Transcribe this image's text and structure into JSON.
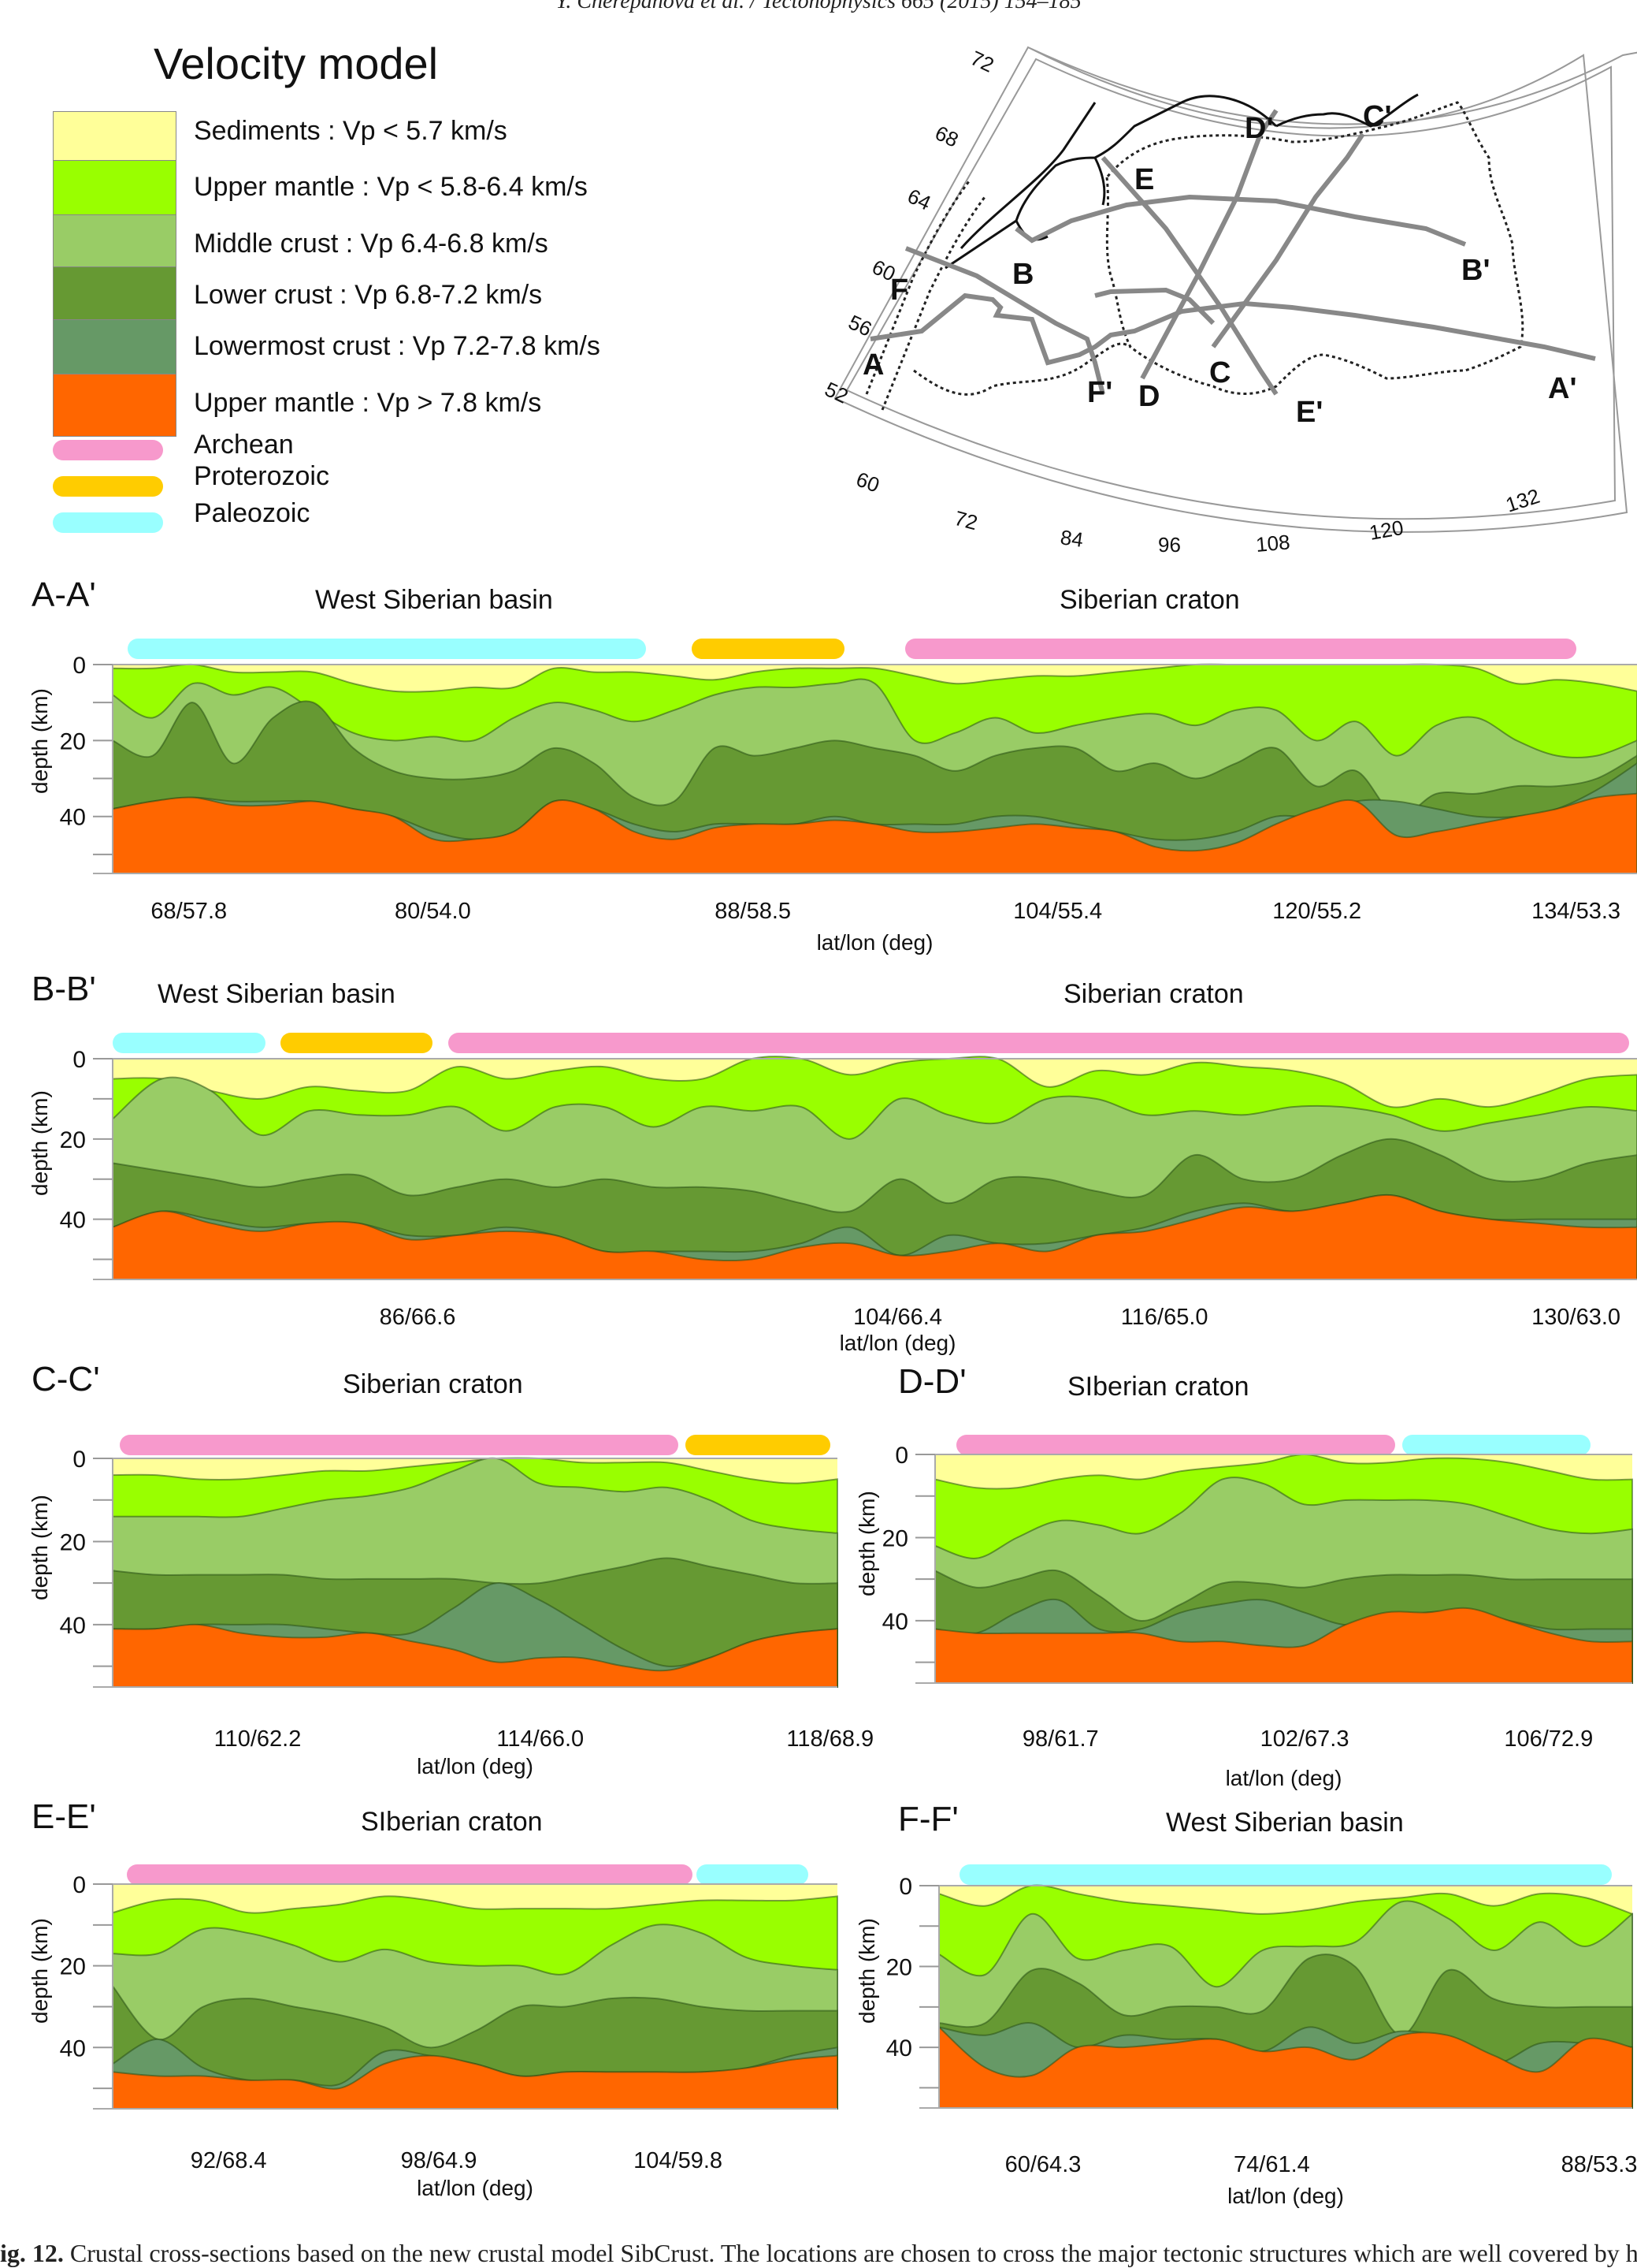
{
  "header": {
    "running_head": "Y. Cherepanova et al. / Tectonophysics 665 (2015) 154–185"
  },
  "legend": {
    "title": "Velocity model",
    "layers": [
      {
        "key": "sed",
        "label": "Sediments : Vp < 5.7 km/s",
        "color": "#FFFF99"
      },
      {
        "key": "upper",
        "label": "Upper mantle : Vp < 5.8-6.4 km/s",
        "color": "#99FF00"
      },
      {
        "key": "middle",
        "label": "Middle crust : Vp 6.4-6.8 km/s",
        "color": "#99CC66"
      },
      {
        "key": "lower",
        "label": "Lower crust : Vp 6.8-7.2 km/s",
        "color": "#669933"
      },
      {
        "key": "lowermost",
        "label": "Lowermost crust : Vp 7.2-7.8 km/s",
        "color": "#669966"
      },
      {
        "key": "mantle",
        "label": "Upper mantle : Vp > 7.8 km/s",
        "color": "#FF6600"
      }
    ],
    "ages": [
      {
        "key": "archean",
        "label": "Archean",
        "color": "#F799CC"
      },
      {
        "key": "proterozoic",
        "label": "Proterozoic",
        "color": "#FFCC00"
      },
      {
        "key": "paleozoic",
        "label": "Paleozoic",
        "color": "#99FFFF"
      }
    ]
  },
  "map": {
    "lat_ticks": [
      "72",
      "68",
      "64",
      "60",
      "56",
      "52"
    ],
    "lon_ticks": [
      "60",
      "72",
      "84",
      "96",
      "108",
      "120",
      "132"
    ],
    "profile_labels": [
      "A",
      "A'",
      "B",
      "B'",
      "C",
      "C'",
      "D",
      "D'",
      "E",
      "E'",
      "F",
      "F'"
    ]
  },
  "chart_data": [
    {
      "type": "area",
      "id": "AA",
      "title": "A-A'",
      "regions": [
        {
          "label": "West Siberian basin"
        },
        {
          "label": "Siberian craton"
        }
      ],
      "age_bars": [
        {
          "age": "paleozoic",
          "from": 0.01,
          "to": 0.35
        },
        {
          "age": "proterozoic",
          "from": 0.38,
          "to": 0.48
        },
        {
          "age": "archean",
          "from": 0.52,
          "to": 0.96
        }
      ],
      "xlabel": "lat/lon (deg)",
      "ylabel": "depth (km)",
      "ylim": [
        0,
        55
      ],
      "yticks": [
        0,
        10,
        20,
        30,
        40,
        50
      ],
      "ytick_labels": [
        "0",
        "20",
        "40"
      ],
      "xtick_labels": [
        {
          "label": "68/57.8",
          "at": 0.05
        },
        {
          "label": "80/54.0",
          "at": 0.21
        },
        {
          "label": "88/58.5",
          "at": 0.42
        },
        {
          "label": "104/55.4",
          "at": 0.62
        },
        {
          "label": "120/55.2",
          "at": 0.79
        },
        {
          "label": "134/53.3",
          "at": 0.96
        }
      ],
      "boundaries": {
        "sed_base": [
          1,
          1,
          0,
          2,
          2,
          2,
          5,
          7,
          7,
          6,
          6,
          1,
          2,
          2,
          3,
          4,
          2,
          1,
          1,
          1,
          3,
          5,
          4,
          3,
          3,
          2,
          1,
          0,
          0,
          0,
          0,
          0,
          0,
          0,
          1,
          5,
          4,
          5,
          7
        ],
        "upper_base": [
          8,
          14,
          5,
          8,
          6,
          12,
          18,
          20,
          19,
          20,
          14,
          10,
          12,
          15,
          12,
          8,
          6,
          6,
          5,
          5,
          20,
          18,
          14,
          18,
          16,
          14,
          13,
          16,
          12,
          12,
          20,
          15,
          24,
          16,
          14,
          20,
          24,
          24,
          20
        ],
        "middle_base": [
          20,
          24,
          10,
          26,
          14,
          10,
          22,
          28,
          30,
          30,
          28,
          22,
          26,
          35,
          36,
          22,
          24,
          22,
          20,
          22,
          24,
          28,
          24,
          22,
          22,
          28,
          26,
          30,
          26,
          22,
          32,
          28,
          40,
          34,
          34,
          32,
          32,
          30,
          24
        ],
        "lower_base": [
          38,
          36,
          35,
          36,
          36,
          36,
          38,
          40,
          44,
          46,
          44,
          36,
          38,
          42,
          44,
          42,
          42,
          42,
          40,
          42,
          42,
          42,
          40,
          40,
          42,
          44,
          46,
          46,
          44,
          40,
          40,
          36,
          36,
          38,
          40,
          40,
          38,
          33,
          26
        ],
        "lowermost_base": [
          38,
          36,
          35,
          37,
          37,
          36,
          38,
          40,
          46,
          46,
          44,
          36,
          38,
          44,
          46,
          43,
          42,
          42,
          41,
          42,
          44,
          44,
          43,
          42,
          43,
          44,
          48,
          49,
          47,
          42,
          38,
          36,
          45,
          44,
          42,
          40,
          38,
          35,
          34
        ]
      }
    },
    {
      "type": "area",
      "id": "BB",
      "title": "B-B'",
      "regions": [
        {
          "label": "West Siberian basin"
        },
        {
          "label": "Siberian craton"
        }
      ],
      "age_bars": [
        {
          "age": "paleozoic",
          "from": 0.0,
          "to": 0.1
        },
        {
          "age": "proterozoic",
          "from": 0.11,
          "to": 0.21
        },
        {
          "age": "archean",
          "from": 0.22,
          "to": 0.995
        }
      ],
      "xlabel": "lat/lon (deg)",
      "ylabel": "depth (km)",
      "ylim": [
        0,
        55
      ],
      "yticks": [
        0,
        10,
        20,
        30,
        40,
        50
      ],
      "ytick_labels": [
        "0",
        "20",
        "40"
      ],
      "xtick_labels": [
        {
          "label": "86/66.6",
          "at": 0.2
        },
        {
          "label": "104/66.4",
          "at": 0.515
        },
        {
          "label": "116/65.0",
          "at": 0.69
        },
        {
          "label": "130/63.0",
          "at": 0.96
        }
      ],
      "boundaries": {
        "sed_base": [
          5,
          5,
          8,
          10,
          7,
          8,
          8,
          2,
          5,
          3,
          2,
          5,
          5,
          0,
          0,
          4,
          1,
          0,
          0,
          7,
          3,
          4,
          1,
          2,
          3,
          6,
          12,
          10,
          12,
          9,
          5,
          4
        ],
        "upper_base": [
          15,
          5,
          8,
          19,
          13,
          14,
          14,
          12,
          18,
          12,
          12,
          17,
          12,
          13,
          12,
          20,
          10,
          14,
          16,
          10,
          10,
          14,
          13,
          14,
          12,
          12,
          14,
          18,
          16,
          14,
          12,
          13
        ],
        "middle_base": [
          26,
          28,
          30,
          32,
          30,
          29,
          34,
          32,
          30,
          32,
          30,
          32,
          32,
          33,
          36,
          38,
          30,
          36,
          30,
          30,
          33,
          34,
          24,
          30,
          30,
          24,
          20,
          24,
          30,
          30,
          26,
          24
        ],
        "lower_base": [
          42,
          38,
          40,
          42,
          41,
          41,
          44,
          44,
          42,
          44,
          48,
          48,
          48,
          48,
          46,
          42,
          49,
          44,
          46,
          46,
          44,
          42,
          38,
          36,
          38,
          36,
          34,
          38,
          40,
          40,
          40,
          40
        ],
        "lowermost_base": [
          42,
          38,
          41,
          43,
          41,
          41,
          45,
          44,
          43,
          44,
          48,
          48,
          50,
          50,
          47,
          46,
          49,
          48,
          46,
          48,
          44,
          43,
          40,
          37,
          38,
          36,
          34,
          38,
          40,
          41,
          42,
          42
        ]
      }
    },
    {
      "type": "area",
      "id": "CC",
      "title": "C-C'",
      "regions": [
        {
          "label": "Siberian craton"
        }
      ],
      "age_bars": [
        {
          "age": "archean",
          "from": 0.01,
          "to": 0.78
        },
        {
          "age": "proterozoic",
          "from": 0.79,
          "to": 0.99
        }
      ],
      "xlabel": "lat/lon (deg)",
      "ylabel": "depth (km)",
      "ylim": [
        0,
        55
      ],
      "yticks": [
        0,
        10,
        20,
        30,
        40,
        50
      ],
      "ytick_labels": [
        "0",
        "20",
        "40"
      ],
      "xtick_labels": [
        {
          "label": "110/62.2",
          "at": 0.2
        },
        {
          "label": "114/66.0",
          "at": 0.59
        },
        {
          "label": "118/68.9",
          "at": 0.99
        }
      ],
      "boundaries": {
        "sed_base": [
          4,
          4,
          5,
          5,
          4,
          3,
          3,
          2,
          1,
          0,
          0,
          1,
          1,
          1,
          3,
          5,
          6,
          5
        ],
        "upper_base": [
          14,
          14,
          14,
          14,
          12,
          10,
          9,
          7,
          3,
          0,
          6,
          7,
          8,
          7,
          10,
          15,
          17,
          18
        ],
        "middle_base": [
          27,
          28,
          28,
          28,
          28,
          29,
          29,
          29,
          29,
          30,
          30,
          28,
          26,
          24,
          26,
          28,
          30,
          30
        ],
        "lower_base": [
          41,
          41,
          40,
          40,
          40,
          41,
          42,
          42,
          36,
          30,
          34,
          40,
          46,
          50,
          48,
          44,
          42,
          41
        ],
        "lowermost_base": [
          41,
          41,
          40,
          42,
          43,
          43,
          42,
          44,
          46,
          49,
          48,
          48,
          50,
          51,
          48,
          44,
          42,
          41
        ]
      }
    },
    {
      "type": "area",
      "id": "DD",
      "title": "D-D'",
      "regions": [
        {
          "label": "SIberian craton"
        }
      ],
      "age_bars": [
        {
          "age": "archean",
          "from": 0.03,
          "to": 0.66
        },
        {
          "age": "paleozoic",
          "from": 0.67,
          "to": 0.94
        }
      ],
      "xlabel": "lat/lon (deg)",
      "ylabel": "depth (km)",
      "ylim": [
        0,
        55
      ],
      "yticks": [
        0,
        10,
        20,
        30,
        40,
        50
      ],
      "ytick_labels": [
        "0",
        "20",
        "40"
      ],
      "xtick_labels": [
        {
          "label": "98/61.7",
          "at": 0.18
        },
        {
          "label": "102/67.3",
          "at": 0.53
        },
        {
          "label": "106/72.9",
          "at": 0.88
        }
      ],
      "boundaries": {
        "sed_base": [
          6,
          8,
          8,
          6,
          5,
          6,
          4,
          3,
          2,
          0,
          2,
          2,
          1,
          1,
          2,
          4,
          6,
          6
        ],
        "upper_base": [
          22,
          25,
          20,
          16,
          17,
          19,
          14,
          6,
          7,
          12,
          11,
          11,
          11,
          12,
          15,
          18,
          19,
          18
        ],
        "middle_base": [
          28,
          32,
          30,
          28,
          34,
          40,
          36,
          31,
          31,
          32,
          30,
          29,
          29,
          29,
          30,
          30,
          30,
          30
        ],
        "lower_base": [
          42,
          43,
          38,
          35,
          42,
          42,
          38,
          36,
          35,
          38,
          41,
          40,
          38,
          38,
          40,
          42,
          42,
          42
        ],
        "lowermost_base": [
          42,
          43,
          43,
          43,
          43,
          43,
          45,
          45,
          46,
          46,
          41,
          38,
          38,
          37,
          40,
          43,
          45,
          45
        ]
      }
    },
    {
      "type": "area",
      "id": "EE",
      "title": "E-E'",
      "regions": [
        {
          "label": "SIberian craton"
        }
      ],
      "age_bars": [
        {
          "age": "archean",
          "from": 0.02,
          "to": 0.8
        },
        {
          "age": "paleozoic",
          "from": 0.805,
          "to": 0.96
        }
      ],
      "xlabel": "lat/lon (deg)",
      "ylabel": "depth (km)",
      "ylim": [
        0,
        55
      ],
      "yticks": [
        0,
        10,
        20,
        30,
        40,
        50
      ],
      "ytick_labels": [
        "0",
        "20",
        "40"
      ],
      "xtick_labels": [
        {
          "label": "92/68.4",
          "at": 0.16
        },
        {
          "label": "98/64.9",
          "at": 0.45
        },
        {
          "label": "104/59.8",
          "at": 0.78
        }
      ],
      "boundaries": {
        "sed_base": [
          7,
          4,
          4,
          7,
          6,
          5,
          3,
          4,
          6,
          6,
          6,
          6,
          5,
          4,
          4,
          4,
          3
        ],
        "upper_base": [
          17,
          17,
          11,
          12,
          15,
          19,
          16,
          19,
          20,
          20,
          22,
          15,
          10,
          12,
          18,
          20,
          21
        ],
        "middle_base": [
          25,
          38,
          30,
          28,
          30,
          32,
          35,
          40,
          36,
          30,
          30,
          28,
          28,
          30,
          31,
          31,
          31
        ],
        "lower_base": [
          44,
          38,
          45,
          48,
          48,
          49,
          41,
          42,
          44,
          47,
          46,
          46,
          46,
          46,
          45,
          42,
          40
        ],
        "lowermost_base": [
          46,
          47,
          47,
          48,
          48,
          50,
          44,
          42,
          44,
          47,
          46,
          46,
          46,
          46,
          45,
          43,
          42
        ]
      }
    },
    {
      "type": "area",
      "id": "FF",
      "title": "F-F'",
      "regions": [
        {
          "label": "West Siberian basin"
        }
      ],
      "age_bars": [
        {
          "age": "paleozoic",
          "from": 0.03,
          "to": 0.97
        }
      ],
      "xlabel": "lat/lon (deg)",
      "ylabel": "depth (km)",
      "ylim": [
        0,
        55
      ],
      "yticks": [
        0,
        10,
        20,
        30,
        40,
        50
      ],
      "ytick_labels": [
        "0",
        "20",
        "40"
      ],
      "xtick_labels": [
        {
          "label": "60/64.3",
          "at": 0.15
        },
        {
          "label": "74/61.4",
          "at": 0.48
        },
        {
          "label": "88/53.3",
          "at": 0.99
        }
      ],
      "boundaries": {
        "sed_base": [
          2,
          5,
          0,
          2,
          4,
          5,
          6,
          7,
          6,
          4,
          3,
          2,
          5,
          2,
          3,
          7
        ],
        "upper_base": [
          17,
          22,
          7,
          18,
          16,
          15,
          25,
          16,
          15,
          14,
          4,
          8,
          16,
          9,
          15,
          7
        ],
        "middle_base": [
          34,
          34,
          21,
          24,
          32,
          30,
          30,
          31,
          18,
          20,
          37,
          21,
          28,
          30,
          30,
          30
        ],
        "lower_base": [
          35,
          37,
          34,
          40,
          37,
          38,
          38,
          41,
          35,
          39,
          36,
          38,
          44,
          39,
          39,
          40
        ],
        "lowermost_base": [
          35,
          45,
          47,
          40,
          40,
          39,
          38,
          41,
          40,
          43,
          37,
          37,
          42,
          46,
          38,
          40
        ]
      }
    }
  ],
  "caption": {
    "fig_label": "ig. 12.",
    "text": " Crustal cross-sections based on the new crustal model SibCrust. The locations are chosen to cross the major tectonic structures which are well covered by high-q"
  }
}
